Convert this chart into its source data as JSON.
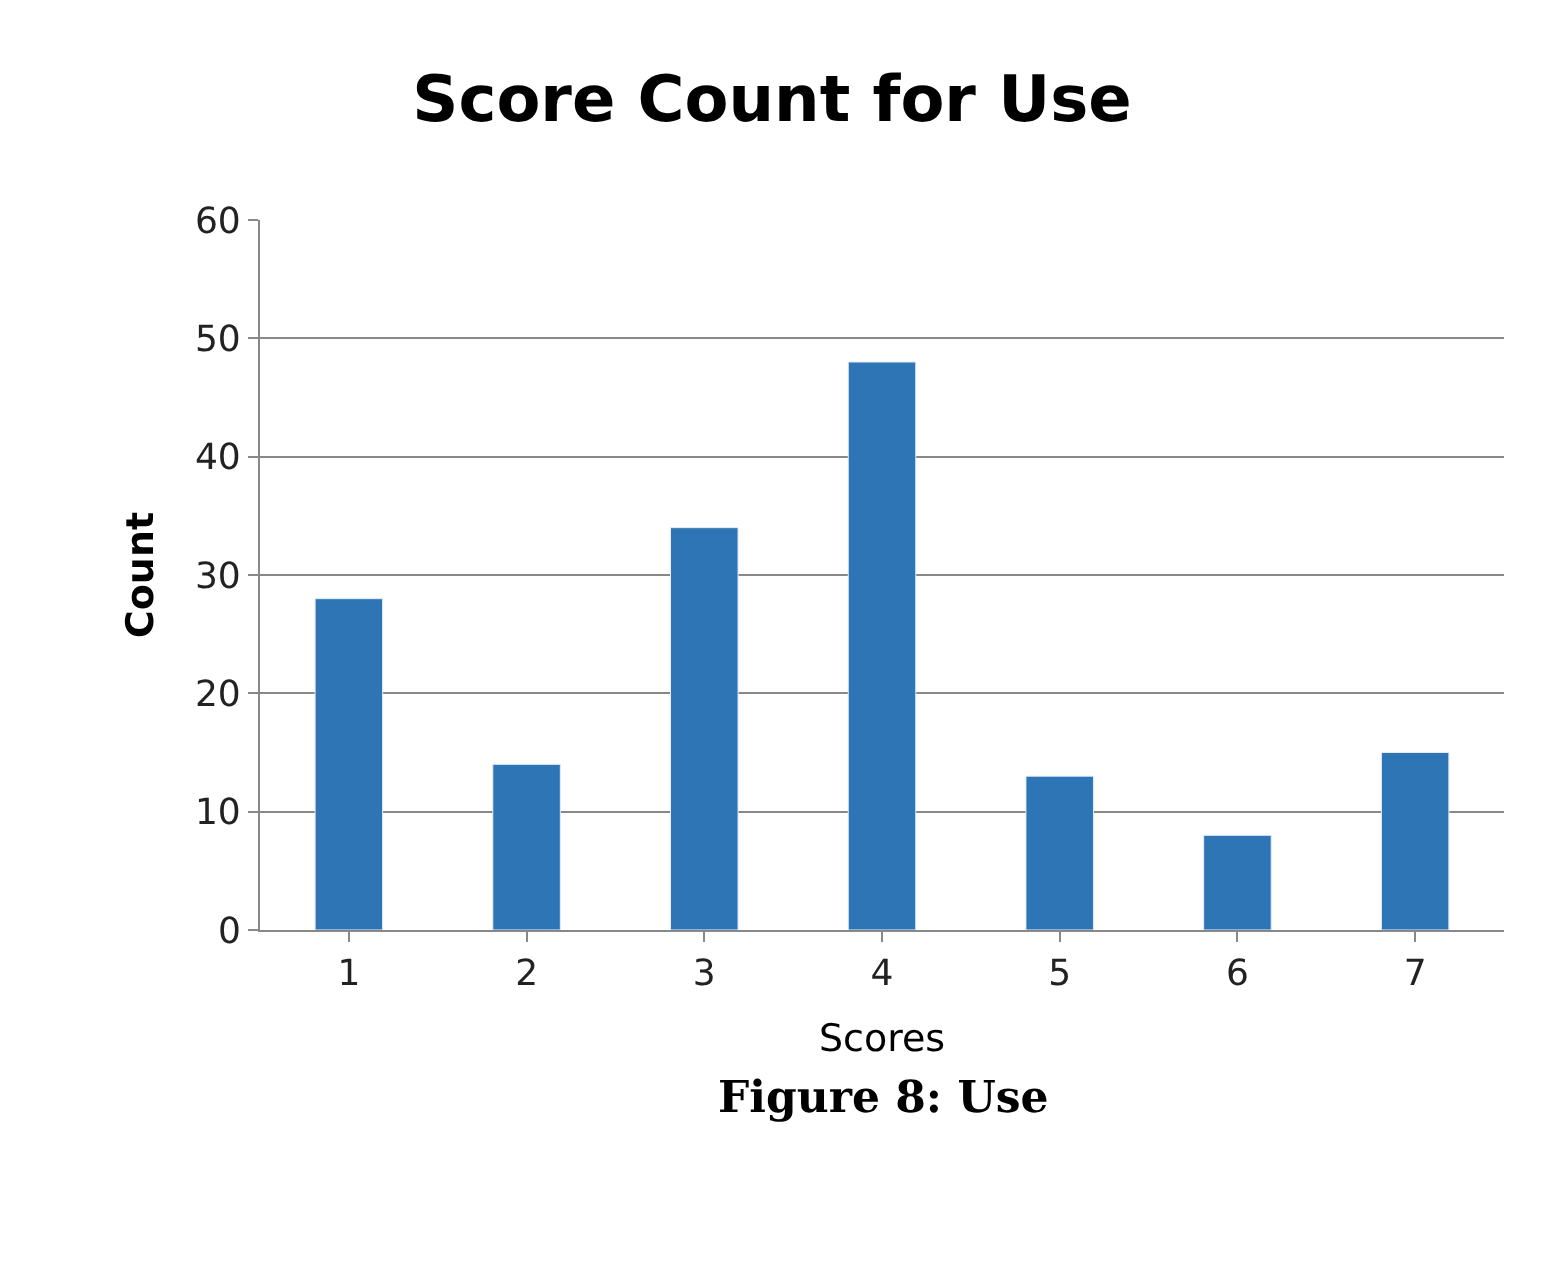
{
  "chart_data": {
    "type": "bar",
    "title": "Score Count for Use",
    "xlabel": "Scores",
    "ylabel": "Count",
    "categories": [
      "1",
      "2",
      "3",
      "4",
      "5",
      "6",
      "7"
    ],
    "values": [
      28,
      14,
      34,
      48,
      13,
      8,
      15
    ],
    "color": "#2e75b6",
    "ylim": [
      0,
      60
    ],
    "yticks": [
      0,
      10,
      20,
      30,
      40,
      50,
      60
    ],
    "grid": "y",
    "legend": false,
    "annotations": [
      "Figure 8: Use"
    ]
  }
}
